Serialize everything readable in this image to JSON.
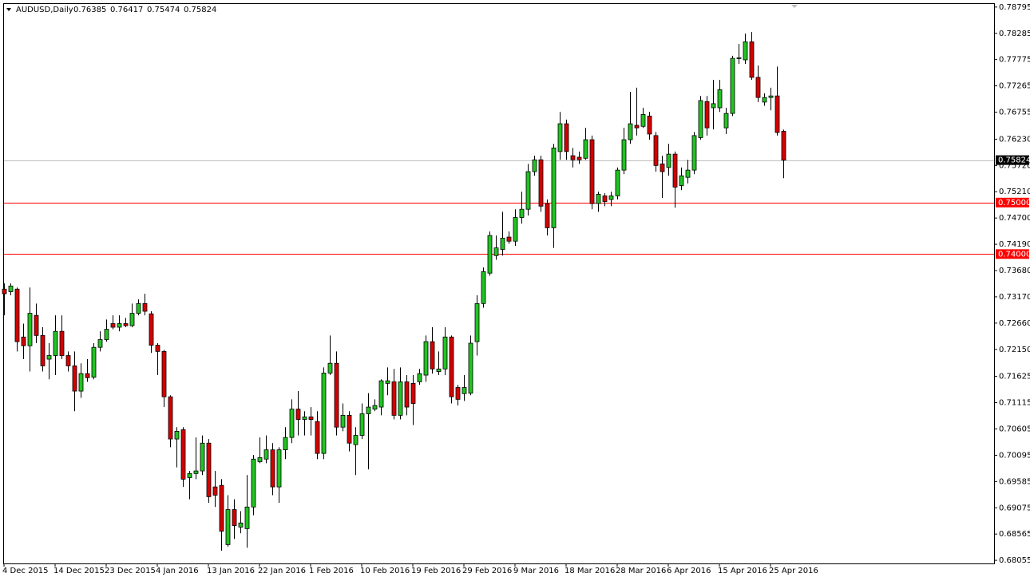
{
  "chart_data": {
    "type": "candlestick",
    "symbol": "AUDUSD,Daily",
    "categories": [
      "4 Dec 2015",
      null,
      null,
      null,
      null,
      null,
      null,
      null,
      "14 Dec 2015",
      null,
      null,
      null,
      null,
      null,
      null,
      null,
      "23 Dec 2015",
      null,
      null,
      null,
      null,
      null,
      null,
      null,
      "4 Jan 2016",
      null,
      null,
      null,
      null,
      null,
      null,
      null,
      "13 Jan 2016",
      null,
      null,
      null,
      null,
      null,
      null,
      null,
      "22 Jan 2016",
      null,
      null,
      null,
      null,
      null,
      null,
      null,
      "1 Feb 2016",
      null,
      null,
      null,
      null,
      null,
      null,
      null,
      "10 Feb 2016",
      null,
      null,
      null,
      null,
      null,
      null,
      null,
      "19 Feb 2016",
      null,
      null,
      null,
      null,
      null,
      null,
      null,
      "29 Feb 2016",
      null,
      null,
      null,
      null,
      null,
      null,
      null,
      "9 Mar 2016",
      null,
      null,
      null,
      null,
      null,
      null,
      null,
      "18 Mar 2016",
      null,
      null,
      null,
      null,
      null,
      null,
      null,
      "28 Mar 2016",
      null,
      null,
      null,
      null,
      null,
      null,
      null,
      "6 Apr 2016",
      null,
      null,
      null,
      null,
      null,
      null,
      null,
      "15 Apr 2016",
      null,
      null,
      null,
      null,
      null,
      null,
      null,
      "25 Apr 2016",
      null,
      null
    ],
    "open": [
      0.7332,
      0.7327,
      0.7332,
      0.7239,
      0.7222,
      0.7281,
      0.7242,
      0.7196,
      0.7203,
      0.725,
      0.7203,
      0.7183,
      0.7134,
      0.7168,
      0.7161,
      0.7219,
      0.7234,
      0.7265,
      0.7258,
      0.7265,
      0.7261,
      0.7285,
      0.7304,
      0.7284,
      0.7223,
      0.7211,
      0.7123,
      0.7041,
      0.7059,
      0.6966,
      0.6974,
      0.6979,
      0.7033,
      0.6948,
      0.6951,
      0.6836,
      0.6904,
      0.687,
      0.6867,
      0.6909,
      0.6997,
      0.7002,
      0.702,
      0.6948,
      0.702,
      0.7044,
      0.7099,
      0.7079,
      0.7084,
      0.7075,
      0.7013,
      0.7169,
      0.7188,
      0.7064,
      0.7087,
      0.703,
      0.7048,
      0.709,
      0.7099,
      0.7103,
      0.7149,
      0.7152,
      0.7087,
      0.7152,
      0.7149,
      0.7152,
      0.7165,
      0.723,
      0.7172,
      0.7177,
      0.7239,
      0.7141,
      0.7129,
      0.713,
      0.723,
      0.7304,
      0.7363,
      0.7397,
      0.7409,
      0.7433,
      0.7425,
      0.7471,
      0.7487,
      0.756,
      0.7583,
      0.7498,
      0.7451,
      0.7599,
      0.7653,
      0.7591,
      0.7588,
      0.7586,
      0.7622,
      0.7498,
      0.7513,
      0.7506,
      0.7513,
      0.7563,
      0.7622,
      0.765,
      0.7648,
      0.7668,
      0.763,
      0.7575,
      0.7568,
      0.7594,
      0.7533,
      0.7549,
      0.7563,
      0.7626,
      0.7696,
      0.7684,
      0.7684,
      0.7645,
      0.7673,
      0.778,
      0.7777,
      0.7812,
      0.7743,
      0.7695,
      0.7704,
      0.7707,
      0.76385
    ],
    "high": [
      0.7343,
      0.7343,
      0.7335,
      0.7265,
      0.7335,
      0.7304,
      0.7258,
      0.7227,
      0.7281,
      0.7281,
      0.7211,
      0.7211,
      0.7188,
      0.7196,
      0.7227,
      0.725,
      0.7273,
      0.7281,
      0.7281,
      0.7276,
      0.7304,
      0.7312,
      0.7323,
      0.7289,
      0.7227,
      0.7214,
      0.7126,
      0.7064,
      0.7064,
      0.6979,
      0.7044,
      0.7048,
      0.7041,
      0.6979,
      0.6963,
      0.6932,
      0.6924,
      0.6901,
      0.6971,
      0.701,
      0.7044,
      0.7048,
      0.7033,
      0.7025,
      0.7064,
      0.7118,
      0.7134,
      0.7095,
      0.7103,
      0.7095,
      0.718,
      0.7242,
      0.7211,
      0.711,
      0.7095,
      0.7064,
      0.711,
      0.713,
      0.7118,
      0.7157,
      0.718,
      0.7177,
      0.718,
      0.7165,
      0.7165,
      0.7177,
      0.7242,
      0.7258,
      0.7211,
      0.7258,
      0.7242,
      0.7146,
      0.7165,
      0.7242,
      0.732,
      0.7374,
      0.7444,
      0.7436,
      0.7482,
      0.7444,
      0.7487,
      0.7521,
      0.7575,
      0.7591,
      0.7591,
      0.7506,
      0.7614,
      0.7676,
      0.7661,
      0.7606,
      0.7599,
      0.7645,
      0.763,
      0.7521,
      0.7518,
      0.7521,
      0.7568,
      0.7645,
      0.7715,
      0.7723,
      0.7684,
      0.7676,
      0.7637,
      0.7591,
      0.7614,
      0.7599,
      0.7568,
      0.7583,
      0.7637,
      0.7707,
      0.7707,
      0.7738,
      0.7738,
      0.7684,
      0.7785,
      0.7808,
      0.7828,
      0.7831,
      0.7766,
      0.7712,
      0.7723,
      0.7764,
      0.76417
    ],
    "low": [
      0.7281,
      0.732,
      0.7211,
      0.7196,
      0.7172,
      0.7227,
      0.7172,
      0.7157,
      0.7165,
      0.7196,
      0.7172,
      0.7095,
      0.7121,
      0.7152,
      0.7157,
      0.7211,
      0.723,
      0.7254,
      0.725,
      0.7258,
      0.7258,
      0.7281,
      0.7281,
      0.7208,
      0.7165,
      0.7103,
      0.7025,
      0.6986,
      0.6948,
      0.6924,
      0.6963,
      0.6971,
      0.6917,
      0.6909,
      0.6824,
      0.6832,
      0.6847,
      0.6858,
      0.683,
      0.6893,
      0.6994,
      0.6994,
      0.6932,
      0.6917,
      0.7002,
      0.7033,
      0.7048,
      0.7048,
      0.7048,
      0.7002,
      0.7002,
      0.7165,
      0.7048,
      0.7056,
      0.7017,
      0.6971,
      0.7041,
      0.6982,
      0.7095,
      0.7087,
      0.7126,
      0.7079,
      0.7079,
      0.7087,
      0.7068,
      0.7146,
      0.7152,
      0.7168,
      0.7165,
      0.7165,
      0.711,
      0.7106,
      0.7115,
      0.7126,
      0.7203,
      0.7296,
      0.7358,
      0.7389,
      0.7397,
      0.742,
      0.7416,
      0.7459,
      0.7475,
      0.7552,
      0.7482,
      0.7436,
      0.7412,
      0.7583,
      0.7583,
      0.7568,
      0.7575,
      0.7583,
      0.7487,
      0.7482,
      0.7493,
      0.7493,
      0.7506,
      0.7555,
      0.7614,
      0.763,
      0.7645,
      0.7622,
      0.756,
      0.7509,
      0.7552,
      0.749,
      0.7524,
      0.7537,
      0.7555,
      0.7622,
      0.763,
      0.7642,
      0.7676,
      0.7633,
      0.7668,
      0.7769,
      0.7769,
      0.7738,
      0.7695,
      0.7688,
      0.7679,
      0.763,
      0.75474
    ],
    "close": [
      0.7323,
      0.7338,
      0.723,
      0.7222,
      0.7285,
      0.7242,
      0.7183,
      0.7203,
      0.725,
      0.7203,
      0.7183,
      0.7134,
      0.7168,
      0.716,
      0.7219,
      0.7234,
      0.7254,
      0.7258,
      0.7265,
      0.7261,
      0.7285,
      0.7304,
      0.7289,
      0.7223,
      0.7211,
      0.7123,
      0.7041,
      0.7056,
      0.6963,
      0.6974,
      0.6979,
      0.7033,
      0.6929,
      0.6932,
      0.6862,
      0.6904,
      0.6873,
      0.6878,
      0.6909,
      0.7002,
      0.7005,
      0.702,
      0.6948,
      0.702,
      0.7044,
      0.7099,
      0.7079,
      0.7084,
      0.7079,
      0.7013,
      0.7169,
      0.7188,
      0.7064,
      0.7087,
      0.7033,
      0.7048,
      0.709,
      0.7103,
      0.7106,
      0.7154,
      0.7154,
      0.7087,
      0.7152,
      0.7103,
      0.711,
      0.7168,
      0.723,
      0.7177,
      0.7177,
      0.7239,
      0.7123,
      0.7118,
      0.7141,
      0.7227,
      0.7304,
      0.7366,
      0.7436,
      0.7412,
      0.7431,
      0.7425,
      0.7471,
      0.7487,
      0.756,
      0.7583,
      0.7493,
      0.7451,
      0.7606,
      0.7653,
      0.7599,
      0.7583,
      0.7583,
      0.7622,
      0.7498,
      0.7516,
      0.7502,
      0.7513,
      0.7563,
      0.7622,
      0.7653,
      0.7645,
      0.7671,
      0.7633,
      0.7572,
      0.756,
      0.7594,
      0.753,
      0.7552,
      0.7563,
      0.763,
      0.7698,
      0.7645,
      0.7692,
      0.7719,
      0.7673,
      0.778,
      0.7781,
      0.7812,
      0.7743,
      0.7704,
      0.7704,
      0.7707,
      0.7636,
      0.75824
    ],
    "up_color": "#22c322",
    "down_color": "#d40000",
    "ylim": [
      0.6801,
      0.7887
    ],
    "yticks": [
      0.78795,
      0.78285,
      0.77775,
      0.77265,
      0.76755,
      {
        "value": 0.7623,
        "label": "0.76230"
      },
      {
        "value": 0.7572,
        "label": "0.75720"
      },
      {
        "value": 0.7521,
        "label": "0.75210"
      },
      {
        "value": 0.747,
        "label": "0.74700"
      },
      {
        "value": 0.7419,
        "label": "0.74190"
      },
      {
        "value": 0.7368,
        "label": "0.73680"
      },
      {
        "value": 0.7317,
        "label": "0.73170"
      },
      {
        "value": 0.7266,
        "label": "0.72660"
      },
      {
        "value": 0.7215,
        "label": "0.72150"
      },
      0.71625,
      0.71115,
      0.70605,
      0.70095,
      0.69585,
      0.69075,
      0.68565,
      0.68055
    ],
    "hlines": [
      {
        "value": 0.75824,
        "label": "0.75824",
        "color": "#c0c0c0",
        "label_bg": "#000000"
      },
      {
        "value": 0.75,
        "label": "0.75000",
        "color": "#ff0000",
        "label_bg": "#ff0000"
      },
      {
        "value": 0.74,
        "label": "0.74000",
        "color": "#ff0000",
        "label_bg": "#ff0000"
      }
    ]
  }
}
